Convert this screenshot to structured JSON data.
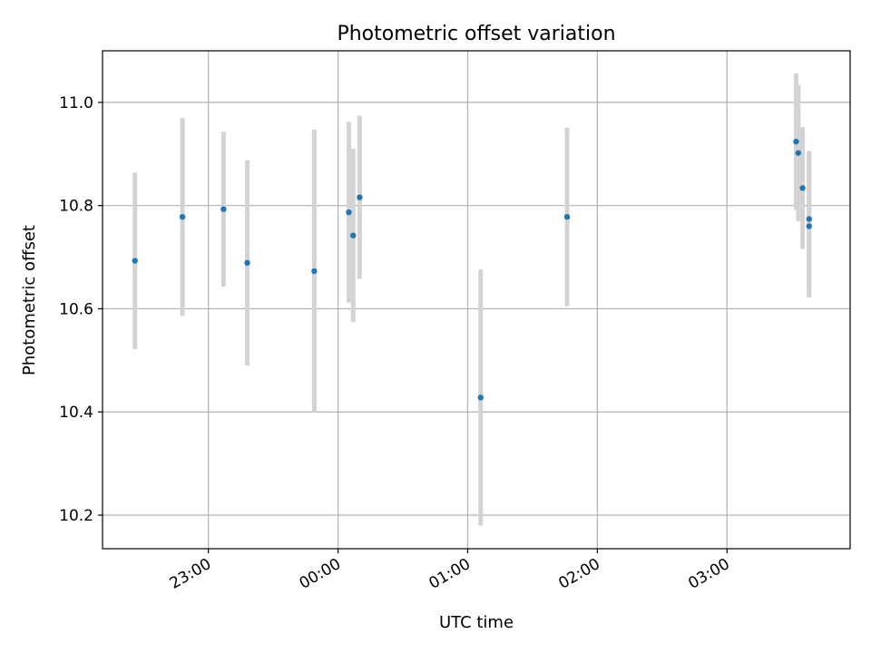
{
  "chart_data": {
    "type": "scatter",
    "title": "Photometric offset variation",
    "xlabel": "UTC time",
    "ylabel": "Photometric offset",
    "x_is_time": true,
    "xlim": [
      "22:11",
      "03:57"
    ],
    "ylim": [
      10.135,
      11.1
    ],
    "x_ticks": [
      "23:00",
      "00:00",
      "01:00",
      "02:00",
      "03:00"
    ],
    "y_ticks": [
      10.2,
      10.4,
      10.6,
      10.8,
      11.0
    ],
    "y_tick_labels": [
      "10.2",
      "10.4",
      "10.6",
      "10.8",
      "11.0"
    ],
    "grid": true,
    "colors": {
      "points": "#1f77b4",
      "errorbars": "#d3d3d3",
      "grid": "#b0b0b0",
      "axes": "#000000"
    },
    "series": [
      {
        "points": [
          {
            "x": "22:26",
            "y": 10.693,
            "err": 0.171
          },
          {
            "x": "22:48",
            "y": 10.778,
            "err": 0.192
          },
          {
            "x": "23:07",
            "y": 10.793,
            "err": 0.15
          },
          {
            "x": "23:18",
            "y": 10.689,
            "err": 0.199
          },
          {
            "x": "23:49",
            "y": 10.673,
            "err": 0.274
          },
          {
            "x": "00:05",
            "y": 10.787,
            "err": 0.175
          },
          {
            "x": "00:07",
            "y": 10.742,
            "err": 0.168
          },
          {
            "x": "00:10",
            "y": 10.816,
            "err": 0.158
          },
          {
            "x": "01:06",
            "y": 10.428,
            "err": 0.248
          },
          {
            "x": "01:46",
            "y": 10.778,
            "err": 0.173
          },
          {
            "x": "03:32",
            "y": 10.924,
            "err": 0.132
          },
          {
            "x": "03:33",
            "y": 10.902,
            "err": 0.132
          },
          {
            "x": "03:35",
            "y": 10.834,
            "err": 0.118
          },
          {
            "x": "03:38",
            "y": 10.774,
            "err": 0.132
          },
          {
            "x": "03:38",
            "y": 10.76,
            "err": 0.138
          }
        ]
      }
    ]
  }
}
